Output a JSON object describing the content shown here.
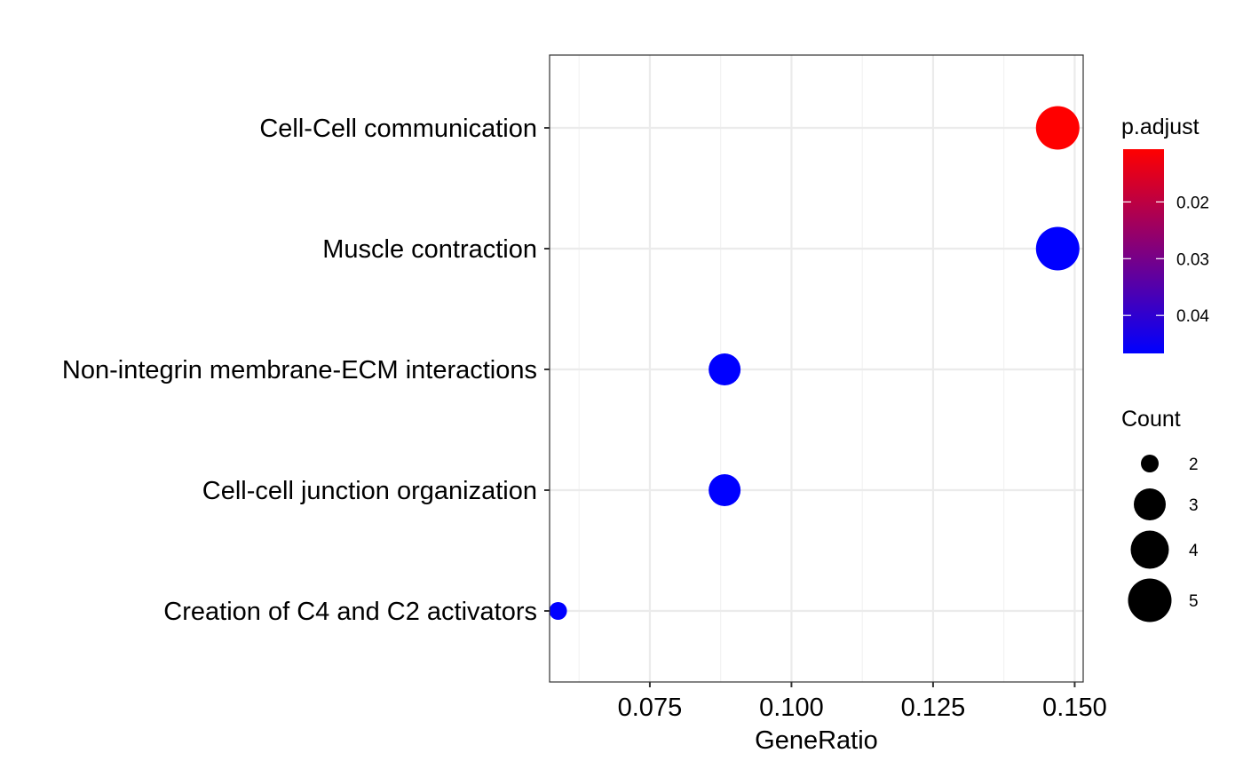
{
  "chart_data": {
    "type": "scatter",
    "title": "",
    "xlabel": "GeneRatio",
    "ylabel": "",
    "xlim": [
      0.0573,
      0.1515
    ],
    "x_ticks": [
      {
        "value": 0.075,
        "label": "0.075"
      },
      {
        "value": 0.1,
        "label": "0.100"
      },
      {
        "value": 0.125,
        "label": "0.125"
      },
      {
        "value": 0.15,
        "label": "0.150"
      }
    ],
    "categories": [
      "Cell-Cell communication",
      "Muscle contraction",
      "Non-integrin membrane-ECM interactions",
      "Cell-cell junction organization",
      "Creation of C4 and C2 activators"
    ],
    "points": [
      {
        "category": "Cell-Cell communication",
        "x": 0.147,
        "count": 5,
        "p_adjust": 0.0107,
        "color": "#ff0000"
      },
      {
        "category": "Muscle contraction",
        "x": 0.147,
        "count": 5,
        "p_adjust": 0.0467,
        "color": "#0000ff"
      },
      {
        "category": "Non-integrin membrane-ECM interactions",
        "x": 0.0882,
        "count": 3,
        "p_adjust": 0.0467,
        "color": "#0000ff"
      },
      {
        "category": "Cell-cell junction organization",
        "x": 0.0882,
        "count": 3,
        "p_adjust": 0.0467,
        "color": "#0000ff"
      },
      {
        "category": "Creation of C4 and C2 activators",
        "x": 0.0588,
        "count": 2,
        "p_adjust": 0.0467,
        "color": "#0000ff"
      }
    ],
    "grid": true,
    "color_legend": {
      "title": "p.adjust",
      "range": [
        0.0107,
        0.0467
      ],
      "low_color": "#ff0000",
      "high_color": "#0000ff",
      "ticks": [
        {
          "value": 0.02,
          "label": "0.02"
        },
        {
          "value": 0.03,
          "label": "0.03"
        },
        {
          "value": 0.04,
          "label": "0.04"
        }
      ]
    },
    "size_legend": {
      "title": "Count",
      "entries": [
        {
          "value": 2,
          "label": "2"
        },
        {
          "value": 3,
          "label": "3"
        },
        {
          "value": 4,
          "label": "4"
        },
        {
          "value": 5,
          "label": "5"
        }
      ]
    },
    "legend_position": "right"
  }
}
